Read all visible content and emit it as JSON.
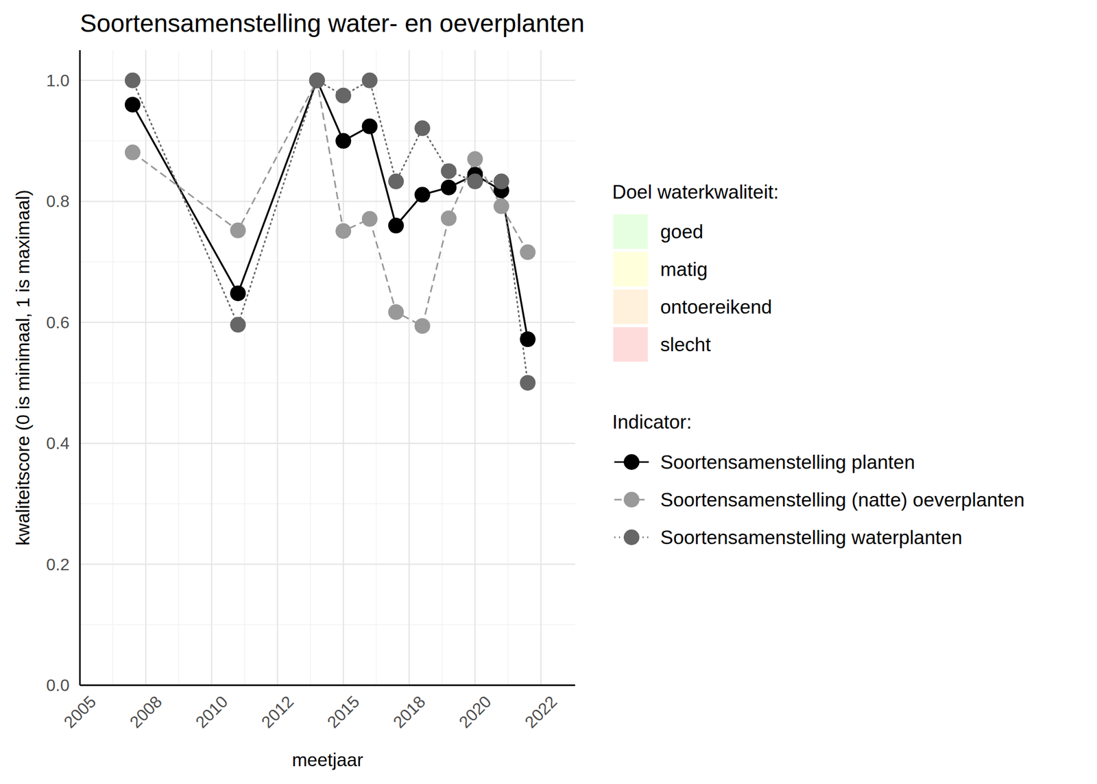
{
  "chart_data": {
    "type": "line",
    "title": "Soortensamenstelling water- en oeverplanten",
    "x_label": "meetjaar",
    "y_label": "kwaliteitscore (0 is minimaal, 1 is maximaal)",
    "x": [
      2007,
      2011,
      2014,
      2015,
      2016,
      2017,
      2018,
      2019,
      2020,
      2021,
      2022
    ],
    "xlim": [
      2005,
      2023.8
    ],
    "xticks": [
      {
        "value": 2005,
        "label": "2005"
      },
      {
        "value": 2007.5,
        "label": "2008"
      },
      {
        "value": 2010,
        "label": "2010"
      },
      {
        "value": 2012.5,
        "label": "2012"
      },
      {
        "value": 2015,
        "label": "2015"
      },
      {
        "value": 2017.5,
        "label": "2018"
      },
      {
        "value": 2020,
        "label": "2020"
      },
      {
        "value": 2022.5,
        "label": "2022"
      }
    ],
    "ylim": [
      0,
      1.05
    ],
    "yticks": [
      {
        "value": 0,
        "label": "0.0"
      },
      0.2,
      0.4,
      0.6,
      0.8,
      {
        "value": 1,
        "label": "1.0"
      }
    ],
    "grid": true,
    "legend": "right",
    "legend_title": "Indicator:",
    "background_legend": {
      "title": "Doel waterkwaliteit:",
      "items": [
        {
          "name": "goed",
          "color": "#e6ffe0"
        },
        {
          "name": "matig",
          "color": "#ffffdc"
        },
        {
          "name": "ontoereikend",
          "color": "#fff1dc"
        },
        {
          "name": "slecht",
          "color": "#ffdcdc"
        }
      ]
    },
    "series": [
      {
        "name": "Soortensamenstelling planten",
        "color": "#000000",
        "line_style": "solid",
        "marker": "circle",
        "values": [
          0.96,
          0.648,
          1.0,
          0.9,
          0.924,
          0.76,
          0.811,
          0.823,
          0.844,
          0.818,
          0.572
        ]
      },
      {
        "name": "Soortensamenstelling (natte) oeverplanten",
        "color": "#999999",
        "line_style": "dashed",
        "marker": "circle",
        "values": [
          0.881,
          0.752,
          1.0,
          0.751,
          0.771,
          0.617,
          0.594,
          0.772,
          0.87,
          0.792,
          0.716
        ]
      },
      {
        "name": "Soortensamenstelling waterplanten",
        "color": "#666666",
        "line_style": "dotted",
        "marker": "circle",
        "values": [
          1.0,
          0.596,
          1.0,
          0.975,
          1.0,
          0.833,
          0.921,
          0.85,
          0.833,
          0.833,
          0.5
        ]
      }
    ]
  }
}
